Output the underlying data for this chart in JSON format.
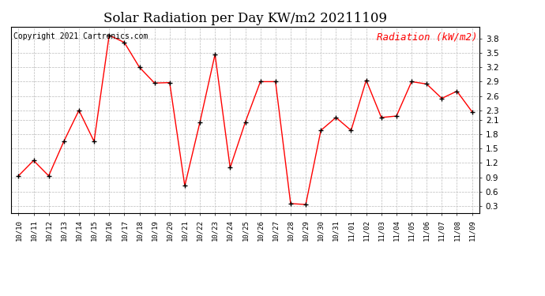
{
  "title": "Solar Radiation per Day KW/m2 20211109",
  "copyright_text": "Copyright 2021 Cartronics.com",
  "legend_label": "Radiation (kW/m2)",
  "dates": [
    "10/10",
    "10/11",
    "10/12",
    "10/13",
    "10/14",
    "10/15",
    "10/16",
    "10/17",
    "10/18",
    "10/19",
    "10/20",
    "10/21",
    "10/22",
    "10/23",
    "10/24",
    "10/25",
    "10/26",
    "10/27",
    "10/28",
    "10/29",
    "10/30",
    "10/31",
    "11/01",
    "11/02",
    "11/03",
    "11/04",
    "11/05",
    "11/06",
    "11/07",
    "11/08",
    "11/09"
  ],
  "values": [
    0.93,
    1.25,
    0.93,
    1.65,
    2.3,
    1.65,
    3.87,
    3.72,
    3.2,
    2.87,
    2.88,
    0.72,
    2.05,
    3.47,
    1.1,
    2.05,
    2.9,
    2.9,
    0.35,
    0.33,
    1.88,
    2.15,
    1.88,
    2.93,
    2.15,
    2.18,
    2.9,
    2.85,
    2.55,
    2.7,
    2.27
  ],
  "line_color": "red",
  "marker_color": "black",
  "marker_style": "+",
  "ylim": [
    0.15,
    4.05
  ],
  "yticks": [
    0.3,
    0.6,
    0.9,
    1.2,
    1.5,
    1.8,
    2.1,
    2.3,
    2.6,
    2.9,
    3.2,
    3.5,
    3.8
  ],
  "background_color": "white",
  "grid_color": "#bbbbbb",
  "title_fontsize": 12,
  "copyright_fontsize": 7,
  "legend_fontsize": 9,
  "fig_width": 6.9,
  "fig_height": 3.75,
  "dpi": 100
}
